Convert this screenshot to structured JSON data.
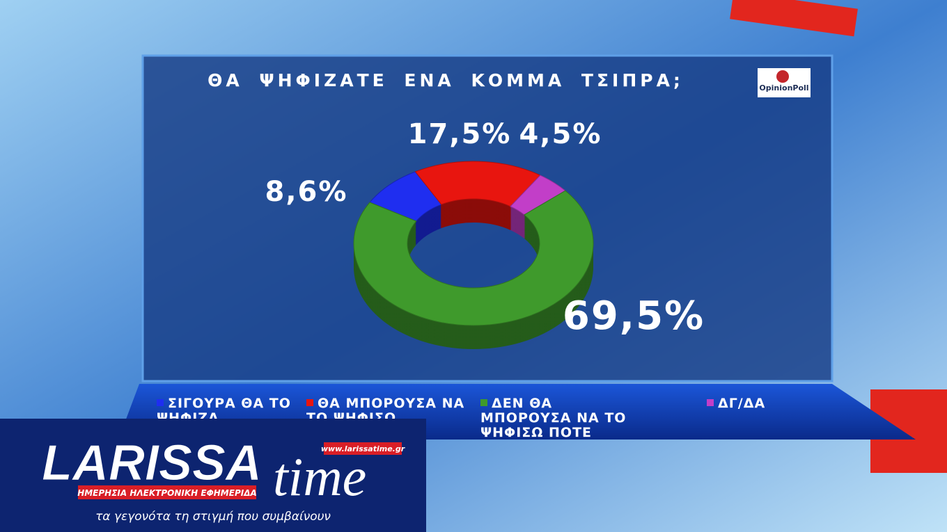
{
  "chart_data": {
    "type": "pie",
    "donut": true,
    "title": "ΘΑ ΨΗΦΙΖΑΤΕ ΕΝΑ ΚΟΜΜΑ ΤΣΙΠΡΑ;",
    "categories": [
      "ΣΙΓΟΥΡΑ ΘΑ ΤΟ ΨΗΦΙΖΑ",
      "ΘΑ ΜΠΟΡΟΥΣΑ ΝΑ ΤΟ ΨΗΦΙΣΩ",
      "ΔΕΝ ΘΑ ΜΠΟΡΟΥΣΑ ΝΑ ΤΟ ΨΗΦΙΣΩ ΠΟΤΕ",
      "ΔΓ/ΔΑ"
    ],
    "values": [
      8.6,
      17.5,
      69.5,
      4.5
    ],
    "value_labels": [
      "8,6%",
      "17,5%",
      "69,5%",
      "4,5%"
    ],
    "colors": [
      "#1f2ef0",
      "#e8150f",
      "#3f9a2c",
      "#c23ec8"
    ]
  },
  "source": "OpinionPoll",
  "logo": {
    "name": "LARISSA",
    "name2": "time",
    "url": "www.larissatime.gr",
    "subtitle": "ΗΜΕΡΗΣΙΑ ΗΛΕΚΤΡΟΝΙΚΗ ΕΦΗΜΕΡΙΔΑ",
    "slogan": "τα γεγονότα τη στιγμή που συμβαίνουν"
  }
}
